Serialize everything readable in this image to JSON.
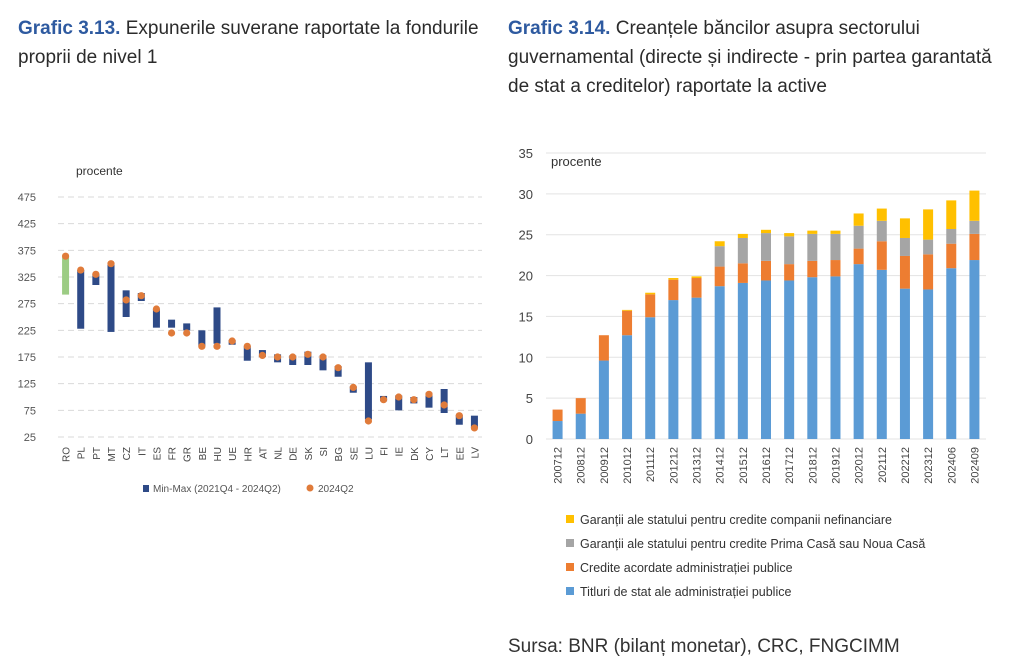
{
  "charts_header": {
    "left": {
      "number": "Grafic 3.13.",
      "title": "Expunerile suverane raportate la fondurile proprii de nivel 1"
    },
    "right": {
      "number": "Grafic 3.14.",
      "title": "Creanțele băncilor asupra sectorului guvernamental (directe și indirecte - prin partea garantată de stat a creditelor) raportate la active"
    }
  },
  "source": "Sursa: BNR (bilanț monetar), CRC, FNGCIMM",
  "chart_data": [
    {
      "type": "bar",
      "subtype": "range-bar-with-points",
      "unit_label": "procente",
      "ylim": [
        25,
        475
      ],
      "yticks": [
        25,
        75,
        125,
        175,
        225,
        275,
        325,
        375,
        425,
        475
      ],
      "categories": [
        "RO",
        "PL",
        "PT",
        "MT",
        "CZ",
        "IT",
        "ES",
        "FR",
        "GR",
        "BE",
        "HU",
        "UE",
        "HR",
        "AT",
        "NL",
        "DE",
        "SK",
        "SI",
        "BG",
        "SE",
        "LU",
        "FI",
        "IE",
        "DK",
        "CY",
        "LT",
        "EE",
        "LV"
      ],
      "series": [
        {
          "name": "Min-Max (2021Q4 - 2024Q2)",
          "color": "#2e4a87",
          "highlight_color": "#9ccc84",
          "highlight_category": "RO",
          "min": [
            292,
            228,
            310,
            222,
            250,
            280,
            230,
            230,
            225,
            195,
            200,
            198,
            168,
            175,
            165,
            160,
            160,
            150,
            138,
            108,
            58,
            92,
            75,
            88,
            80,
            70,
            48,
            42
          ],
          "max": [
            362,
            338,
            330,
            352,
            300,
            295,
            265,
            245,
            238,
            225,
            268,
            207,
            195,
            188,
            180,
            178,
            185,
            178,
            158,
            120,
            165,
            102,
            103,
            100,
            108,
            115,
            66,
            65
          ]
        },
        {
          "name": "2024Q2",
          "color": "#e07b3a",
          "values": [
            364,
            338,
            330,
            350,
            282,
            290,
            265,
            220,
            220,
            195,
            195,
            205,
            195,
            178,
            175,
            175,
            180,
            175,
            155,
            118,
            55,
            95,
            100,
            95,
            105,
            85,
            65,
            42
          ]
        }
      ],
      "legend_position": "bottom",
      "grid": "dashed horizontal"
    },
    {
      "type": "bar",
      "subtype": "stacked",
      "unit_label": "procente",
      "ylim": [
        0,
        35
      ],
      "yticks": [
        0,
        5,
        10,
        15,
        20,
        25,
        30,
        35
      ],
      "categories": [
        "200712",
        "200812",
        "200912",
        "201012",
        "201112",
        "201212",
        "201312",
        "201412",
        "201512",
        "201612",
        "201712",
        "201812",
        "201912",
        "202012",
        "202112",
        "202212",
        "202312",
        "202406",
        "202409"
      ],
      "series": [
        {
          "name": "Titluri de stat ale administrației publice",
          "color": "#5b9bd5",
          "values": [
            2.2,
            3.1,
            9.6,
            12.7,
            14.9,
            17.0,
            17.3,
            18.7,
            19.1,
            19.4,
            19.4,
            19.8,
            19.9,
            21.4,
            20.7,
            18.4,
            18.3,
            20.9,
            21.9
          ]
        },
        {
          "name": "Credite acordate administrației publice",
          "color": "#ed7d31",
          "values": [
            1.4,
            1.9,
            3.1,
            3.0,
            2.8,
            2.5,
            2.4,
            2.4,
            2.4,
            2.4,
            2.0,
            2.0,
            2.0,
            1.9,
            3.5,
            4.0,
            4.3,
            3.0,
            3.2
          ]
        },
        {
          "name": "Garanții ale statului pentru credite Prima Casă sau Noua Casă",
          "color": "#a5a5a5",
          "values": [
            0,
            0,
            0,
            0,
            0,
            0,
            0,
            2.5,
            3.1,
            3.4,
            3.4,
            3.3,
            3.2,
            2.8,
            2.5,
            2.2,
            1.8,
            1.8,
            1.6
          ]
        },
        {
          "name": "Garanții ale statului pentru credite companii nefinanciare",
          "color": "#ffc000",
          "values": [
            0,
            0,
            0,
            0.1,
            0.2,
            0.2,
            0.2,
            0.6,
            0.5,
            0.4,
            0.4,
            0.4,
            0.4,
            1.5,
            1.5,
            2.4,
            3.7,
            3.5,
            3.7
          ]
        }
      ],
      "legend_order": [
        "Garanții ale statului pentru credite companii nefinanciare",
        "Garanții ale statului pentru credite Prima Casă sau Noua Casă",
        "Credite acordate administrației publice",
        "Titluri de stat ale administrației publice"
      ],
      "legend_position": "bottom",
      "grid": "horizontal"
    }
  ]
}
